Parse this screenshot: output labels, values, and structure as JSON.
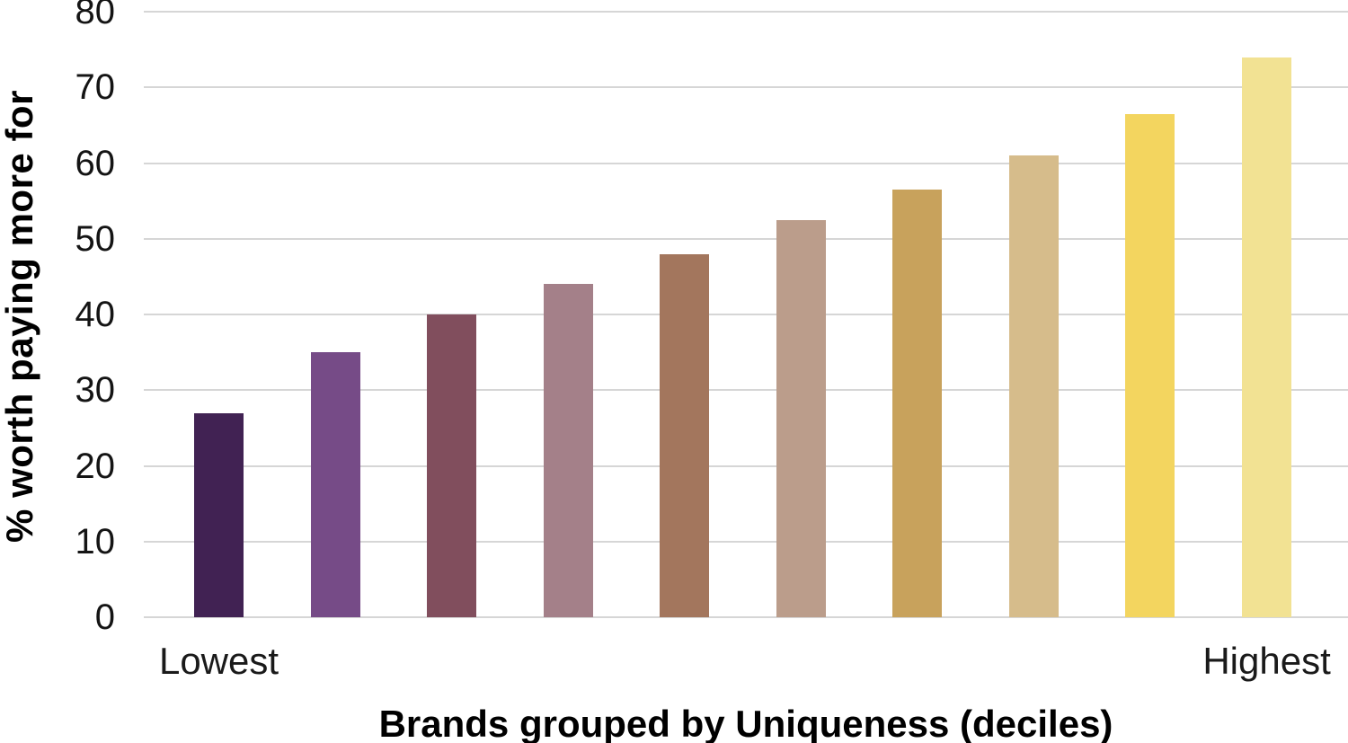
{
  "chart_data": {
    "type": "bar",
    "title": "",
    "xlabel": "Brands grouped by Uniqueness (deciles)",
    "ylabel": "% worth paying more for",
    "categories": [
      "Lowest",
      "",
      "",
      "",
      "",
      "",
      "",
      "",
      "",
      "Highest"
    ],
    "values": [
      27,
      35,
      40,
      44,
      48,
      52.5,
      56.5,
      61,
      66.5,
      74
    ],
    "bar_colors": [
      "#412253",
      "#764B87",
      "#814E5D",
      "#A48089",
      "#A3765D",
      "#BB9D8B",
      "#C8A25C",
      "#D6BC8B",
      "#F3D55F",
      "#F2E293"
    ],
    "ylim": [
      0,
      80
    ],
    "yticks": [
      0,
      10,
      20,
      30,
      40,
      50,
      60,
      70,
      80
    ],
    "grid": "horizontal",
    "gridline_color": "#d6d6d6",
    "legend": "none"
  }
}
